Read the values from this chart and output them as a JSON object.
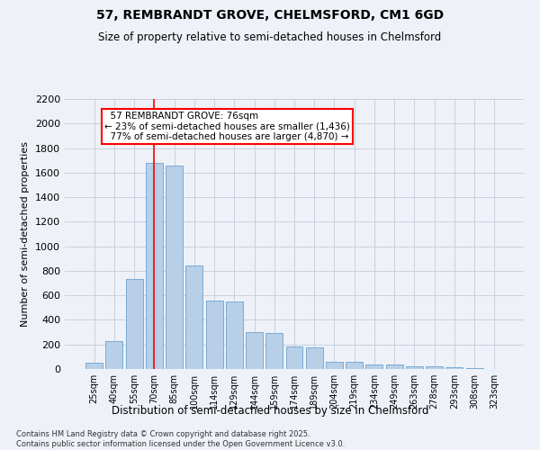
{
  "title1": "57, REMBRANDT GROVE, CHELMSFORD, CM1 6GD",
  "title2": "Size of property relative to semi-detached houses in Chelmsford",
  "xlabel": "Distribution of semi-detached houses by size in Chelmsford",
  "ylabel": "Number of semi-detached properties",
  "categories": [
    "25sqm",
    "40sqm",
    "55sqm",
    "70sqm",
    "85sqm",
    "100sqm",
    "114sqm",
    "129sqm",
    "144sqm",
    "159sqm",
    "174sqm",
    "189sqm",
    "204sqm",
    "219sqm",
    "234sqm",
    "249sqm",
    "263sqm",
    "278sqm",
    "293sqm",
    "308sqm",
    "323sqm"
  ],
  "values": [
    50,
    225,
    730,
    1680,
    1660,
    845,
    555,
    550,
    300,
    295,
    180,
    175,
    60,
    58,
    40,
    35,
    25,
    20,
    15,
    5,
    2
  ],
  "bar_color": "#b8cfe8",
  "bar_edge_color": "#7aabd4",
  "property_label": "57 REMBRANDT GROVE: 76sqm",
  "pct_smaller": 23,
  "pct_larger": 77,
  "count_smaller": 1436,
  "count_larger": 4870,
  "vline_x_index": 3,
  "ylim": [
    0,
    2200
  ],
  "yticks": [
    0,
    200,
    400,
    600,
    800,
    1000,
    1200,
    1400,
    1600,
    1800,
    2000,
    2200
  ],
  "footer1": "Contains HM Land Registry data © Crown copyright and database right 2025.",
  "footer2": "Contains public sector information licensed under the Open Government Licence v3.0.",
  "bg_color": "#eef2f8",
  "grid_color": "#c8d0dc"
}
